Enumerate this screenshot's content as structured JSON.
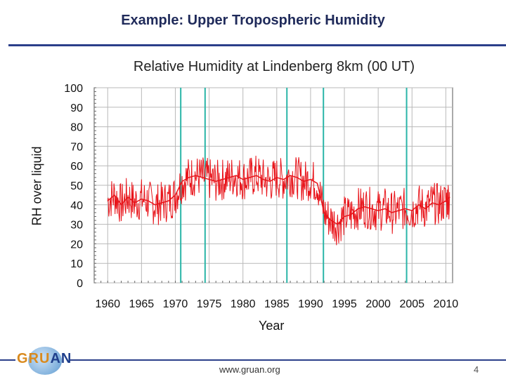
{
  "slide": {
    "title": "Example: Upper Tropospheric Humidity",
    "footer_url": "www.gruan.org",
    "page_number": "4",
    "logo_text_a": "GRU",
    "logo_text_b": "AN"
  },
  "chart_data": {
    "type": "line",
    "title": "Relative Humidity at Lindenberg 8km (00 UT)",
    "xlabel": "Year",
    "ylabel": "RH over liquid",
    "xlim": [
      1958,
      2011
    ],
    "ylim": [
      0,
      100
    ],
    "x_ticks": [
      1960,
      1965,
      1970,
      1975,
      1980,
      1985,
      1990,
      1995,
      2000,
      2005,
      2010
    ],
    "y_ticks": [
      0,
      10,
      20,
      30,
      40,
      50,
      60,
      70,
      80,
      90,
      100
    ],
    "grid": true,
    "series_color": "#e8141a",
    "marker_color": "#2bb5a8",
    "vertical_markers": [
      1970.8,
      1974.4,
      1986.5,
      1991.9,
      2004.2
    ],
    "series": [
      {
        "x": [
          1960.0,
          1961.0,
          1962.0,
          1963.0,
          1964.0,
          1965.0,
          1966.0,
          1967.0,
          1968.0,
          1969.0,
          1970.0,
          1971.0,
          1972.0,
          1973.0,
          1974.0,
          1975.0,
          1976.0,
          1977.0,
          1978.0,
          1979.0,
          1980.0,
          1981.0,
          1982.0,
          1983.0,
          1984.0,
          1985.0,
          1986.0,
          1987.0,
          1988.0,
          1989.0,
          1990.0,
          1991.0,
          1992.0,
          1993.0,
          1994.0,
          1995.0,
          1996.0,
          1997.0,
          1998.0,
          1999.0,
          2000.0,
          2001.0,
          2002.0,
          2003.0,
          2004.0,
          2005.0,
          2006.0,
          2007.0,
          2008.0,
          2009.0,
          2010.0,
          2010.6
        ],
        "y": [
          42,
          45,
          40,
          44,
          41,
          43,
          42,
          40,
          41,
          42,
          45,
          52,
          54,
          55,
          54,
          53,
          52,
          53,
          54,
          55,
          53,
          54,
          55,
          53,
          52,
          54,
          53,
          55,
          54,
          52,
          53,
          51,
          36,
          32,
          30,
          34,
          35,
          38,
          39,
          38,
          37,
          38,
          36,
          37,
          38,
          37,
          40,
          38,
          41,
          40,
          42,
          44
        ]
      }
    ]
  }
}
